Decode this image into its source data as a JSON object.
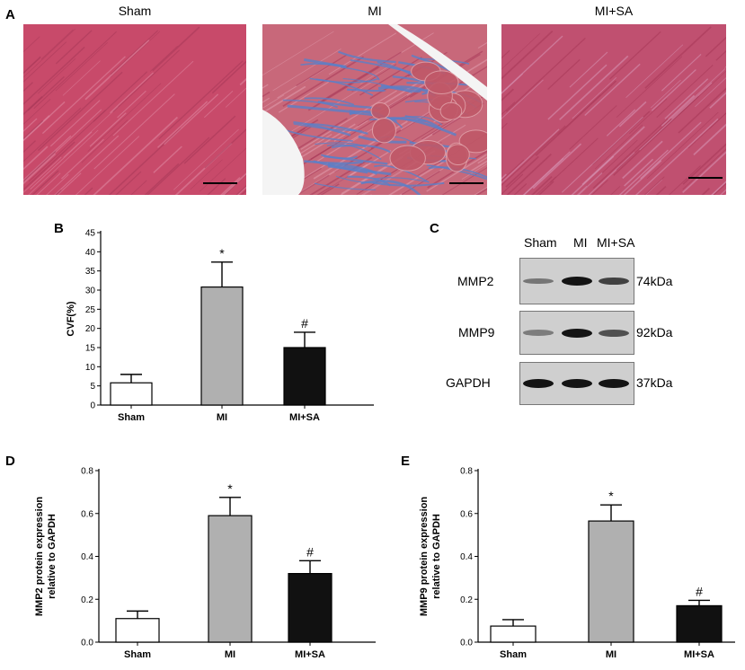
{
  "panel_letters": {
    "a": "A",
    "b": "B",
    "c": "C",
    "d": "D",
    "e": "E"
  },
  "micrographs": [
    {
      "title": "Sham",
      "colors": {
        "base": "#c84a6a",
        "streak": "#e08aa4"
      }
    },
    {
      "title": "MI",
      "colors": {
        "base": "#c8687a",
        "fibrosis": "#5a7fc8"
      }
    },
    {
      "title": "MI+SA",
      "colors": {
        "base": "#c05070",
        "streak": "#d898b8"
      }
    }
  ],
  "western_blot": {
    "lanes": [
      "Sham",
      "MI",
      "MI+SA"
    ],
    "rows": [
      {
        "protein": "MMP2",
        "size": "74kDa",
        "intensity": [
          0.35,
          1.0,
          0.7
        ]
      },
      {
        "protein": "MMP9",
        "size": "92kDa",
        "intensity": [
          0.3,
          1.0,
          0.6
        ]
      },
      {
        "protein": "GAPDH",
        "size": "37kDa",
        "intensity": [
          1.0,
          1.0,
          1.0
        ]
      }
    ]
  },
  "chart_data": [
    {
      "id": "B",
      "type": "bar",
      "categories": [
        "Sham",
        "MI",
        "MI+SA"
      ],
      "values": [
        5.8,
        30.8,
        15.0
      ],
      "errors": [
        2.2,
        6.5,
        4.0
      ],
      "significance": [
        "",
        "*",
        "#"
      ],
      "fills": [
        "#ffffff",
        "#b0b0b0",
        "#111111"
      ],
      "ylabel": "CVF(%)",
      "ylim": [
        0,
        45
      ],
      "yticks": [
        0,
        5,
        10,
        15,
        20,
        25,
        30,
        35,
        40,
        45
      ],
      "ytick_labels": [
        "0",
        "5",
        "10",
        "15",
        "20",
        "25",
        "30",
        "35",
        "40",
        "45"
      ]
    },
    {
      "id": "D",
      "type": "bar",
      "categories": [
        "Sham",
        "MI",
        "MI+SA"
      ],
      "values": [
        0.11,
        0.59,
        0.32
      ],
      "errors": [
        0.035,
        0.085,
        0.06
      ],
      "significance": [
        "",
        "*",
        "#"
      ],
      "fills": [
        "#ffffff",
        "#b0b0b0",
        "#111111"
      ],
      "ylabel": [
        "MMP2 protein expression",
        "relative to GAPDH"
      ],
      "ylim": [
        0,
        0.8
      ],
      "yticks": [
        0,
        0.2,
        0.4,
        0.6,
        0.8
      ],
      "ytick_labels": [
        "0.0",
        "0.2",
        "0.4",
        "0.6",
        "0.8"
      ]
    },
    {
      "id": "E",
      "type": "bar",
      "categories": [
        "Sham",
        "MI",
        "MI+SA"
      ],
      "values": [
        0.075,
        0.565,
        0.17
      ],
      "errors": [
        0.03,
        0.075,
        0.025
      ],
      "significance": [
        "",
        "*",
        "#"
      ],
      "fills": [
        "#ffffff",
        "#b0b0b0",
        "#111111"
      ],
      "ylabel": [
        "MMP9 protein expression",
        "relative to GAPDH"
      ],
      "ylim": [
        0,
        0.8
      ],
      "yticks": [
        0,
        0.2,
        0.4,
        0.6,
        0.8
      ],
      "ytick_labels": [
        "0.0",
        "0.2",
        "0.4",
        "0.6",
        "0.8"
      ]
    }
  ]
}
